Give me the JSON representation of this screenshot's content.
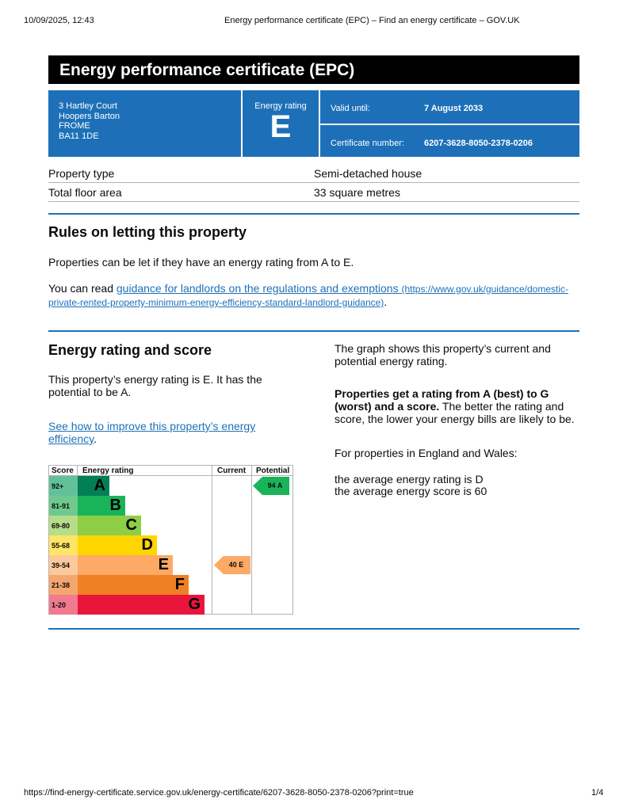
{
  "print_header": {
    "datetime": "10/09/2025, 12:43",
    "title": "Energy performance certificate (EPC) – Find an energy certificate – GOV.UK"
  },
  "print_footer": {
    "url": "https://find-energy-certificate.service.gov.uk/energy-certificate/6207-3628-8050-2378-0206?print=true",
    "page": "1/4"
  },
  "title": "Energy performance certificate (EPC)",
  "address": [
    "3 Hartley Court",
    "Hoopers Barton",
    "FROME",
    "BA11 1DE"
  ],
  "energy_rating": {
    "label": "Energy rating",
    "value": "E"
  },
  "valid_until": {
    "label": "Valid until:",
    "value": "7 August 2033"
  },
  "certificate_number": {
    "label": "Certificate number:",
    "value": "6207-3628-8050-2378-0206"
  },
  "property": [
    {
      "label": "Property type",
      "value": "Semi-detached house"
    },
    {
      "label": "Total floor area",
      "value": "33 square metres"
    }
  ],
  "rules": {
    "heading": "Rules on letting this property",
    "p1": "Properties can be let if they have an energy rating from A to E.",
    "p2_prefix": "You can read ",
    "link": "guidance for landlords on the regulations and exemptions",
    "link_url_text": "(https://www.gov.uk/guidance/domestic-private-rented-property-minimum-energy-efficiency-standard-landlord-guidance)",
    "p2_suffix": "."
  },
  "score_section": {
    "heading": "Energy rating and score",
    "p1": "This property’s energy rating is E. It has the potential to be A.",
    "link": "See how to improve this property’s energy efficiency",
    "link_suffix": ".",
    "r1": "The graph shows this property’s current and potential energy rating.",
    "r2_bold": "Properties get a rating from A (best) to G (worst) and a score.",
    "r2_rest": " The better the rating and score, the lower your energy bills are likely to be.",
    "r3": "For properties in England and Wales:",
    "r4": "the average energy rating is D",
    "r5": "the average energy score is 60"
  },
  "chart_data": {
    "type": "table",
    "headers": [
      "Score",
      "Energy rating",
      "Current",
      "Potential"
    ],
    "bands": [
      {
        "score": "92+",
        "letter": "A",
        "color": "#008054",
        "score_bg": "#63c19a"
      },
      {
        "score": "81-91",
        "letter": "B",
        "color": "#19b459",
        "score_bg": "#6fc98e"
      },
      {
        "score": "69-80",
        "letter": "C",
        "color": "#8dce46",
        "score_bg": "#b6dd8a"
      },
      {
        "score": "55-68",
        "letter": "D",
        "color": "#ffd500",
        "score_bg": "#ffe566"
      },
      {
        "score": "39-54",
        "letter": "E",
        "color": "#fcaa65",
        "score_bg": "#fdc99c"
      },
      {
        "score": "21-38",
        "letter": "F",
        "color": "#ef8023",
        "score_bg": "#f5a66e"
      },
      {
        "score": "1-20",
        "letter": "G",
        "color": "#e9153b",
        "score_bg": "#f07a8e"
      }
    ],
    "current": {
      "score": 40,
      "letter": "E",
      "label": "40  E",
      "color": "#fcaa65"
    },
    "potential": {
      "score": 94,
      "letter": "A",
      "label": "94  A",
      "color": "#19b459"
    }
  }
}
